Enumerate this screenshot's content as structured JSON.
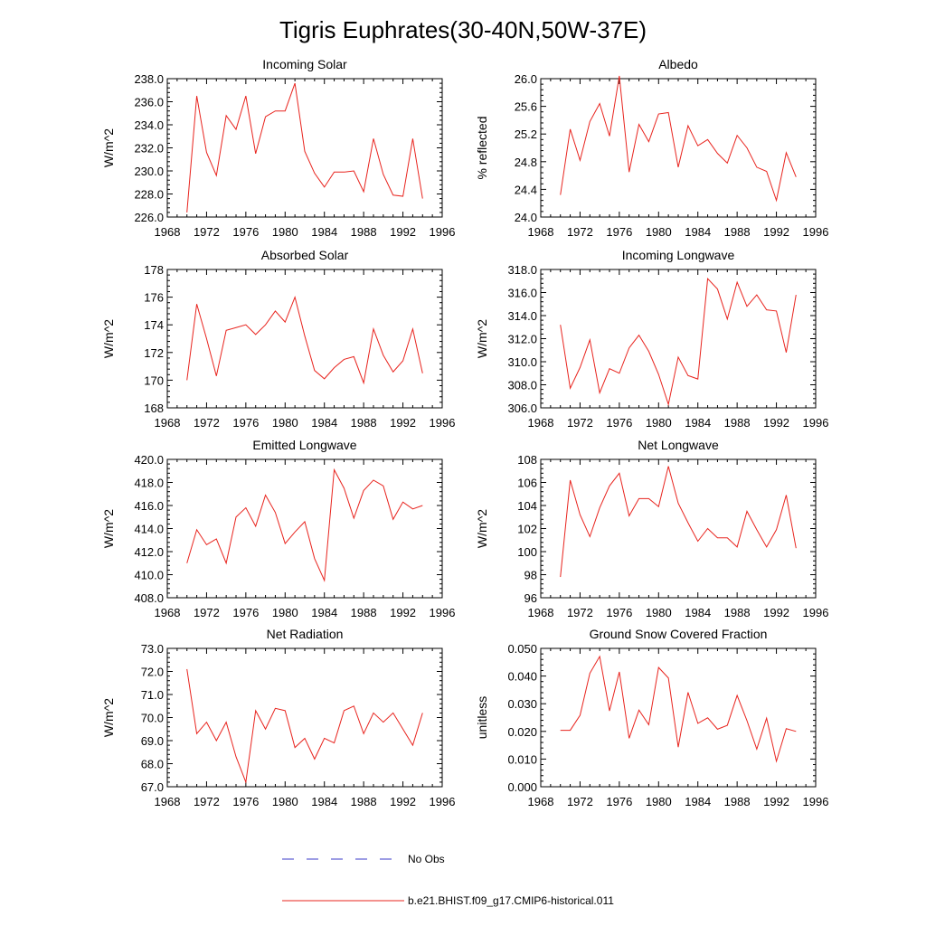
{
  "title": "Tigris Euphrates(30-40N,50W-37E)",
  "x_ticks": [
    "1968",
    "1972",
    "1976",
    "1980",
    "1984",
    "1988",
    "1992",
    "1996"
  ],
  "legend": {
    "obs_label": "No Obs",
    "model_label": "b.e21.BHIST.f09_g17.CMIP6-historical.011",
    "obs_color": "#3b3bc8",
    "model_color": "#e8241e"
  },
  "chart_data": [
    {
      "type": "line",
      "title": "Incoming Solar",
      "ylabel": "W/m^2",
      "xlim": [
        1968,
        1996
      ],
      "ylim": [
        226,
        238
      ],
      "y_ticks": [
        "226.0",
        "228.0",
        "230.0",
        "232.0",
        "234.0",
        "236.0",
        "238.0"
      ],
      "x": [
        1970,
        1971,
        1972,
        1973,
        1974,
        1975,
        1976,
        1977,
        1978,
        1979,
        1980,
        1981,
        1982,
        1983,
        1984,
        1985,
        1986,
        1987,
        1988,
        1989,
        1990,
        1991,
        1992,
        1993,
        1994
      ],
      "series": [
        {
          "values": [
            226.4,
            236.5,
            231.6,
            229.6,
            234.8,
            233.6,
            236.5,
            231.5,
            234.7,
            235.2,
            235.2,
            237.6,
            231.7,
            229.8,
            228.6,
            229.9,
            229.9,
            230.0,
            228.2,
            232.8,
            229.7,
            227.9,
            227.8,
            232.8,
            227.6
          ]
        }
      ]
    },
    {
      "type": "line",
      "title": "Albedo",
      "ylabel": "% reflected",
      "xlim": [
        1968,
        1996
      ],
      "ylim": [
        24.0,
        26.0
      ],
      "y_ticks": [
        "24.0",
        "24.4",
        "24.8",
        "25.2",
        "25.6",
        "26.0"
      ],
      "x": [
        1970,
        1971,
        1972,
        1973,
        1974,
        1975,
        1976,
        1977,
        1978,
        1979,
        1980,
        1981,
        1982,
        1983,
        1984,
        1985,
        1986,
        1987,
        1988,
        1989,
        1990,
        1991,
        1992,
        1993,
        1994
      ],
      "series": [
        {
          "values": [
            24.32,
            25.27,
            24.82,
            25.38,
            25.64,
            25.17,
            26.04,
            24.65,
            25.34,
            25.09,
            25.49,
            25.51,
            24.72,
            25.32,
            25.03,
            25.12,
            24.92,
            24.78,
            25.18,
            25.0,
            24.72,
            24.66,
            24.24,
            24.93,
            24.58
          ]
        }
      ]
    },
    {
      "type": "line",
      "title": "Absorbed Solar",
      "ylabel": "W/m^2",
      "xlim": [
        1968,
        1996
      ],
      "ylim": [
        168,
        178
      ],
      "y_ticks": [
        "168",
        "170",
        "172",
        "174",
        "176",
        "178"
      ],
      "x": [
        1970,
        1971,
        1972,
        1973,
        1974,
        1975,
        1976,
        1977,
        1978,
        1979,
        1980,
        1981,
        1982,
        1983,
        1984,
        1985,
        1986,
        1987,
        1988,
        1989,
        1990,
        1991,
        1992,
        1993,
        1994
      ],
      "series": [
        {
          "values": [
            170.0,
            175.5,
            173.0,
            170.3,
            173.6,
            173.8,
            174.0,
            173.3,
            174.0,
            175.0,
            174.2,
            176.0,
            173.2,
            170.7,
            170.1,
            170.9,
            171.5,
            171.7,
            169.8,
            173.7,
            171.8,
            170.6,
            171.4,
            173.7,
            170.5
          ]
        }
      ]
    },
    {
      "type": "line",
      "title": "Incoming Longwave",
      "ylabel": "W/m^2",
      "xlim": [
        1968,
        1996
      ],
      "ylim": [
        306,
        318
      ],
      "y_ticks": [
        "306.0",
        "308.0",
        "310.0",
        "312.0",
        "314.0",
        "316.0",
        "318.0"
      ],
      "x": [
        1970,
        1971,
        1972,
        1973,
        1974,
        1975,
        1976,
        1977,
        1978,
        1979,
        1980,
        1981,
        1982,
        1983,
        1984,
        1985,
        1986,
        1987,
        1988,
        1989,
        1990,
        1991,
        1992,
        1993,
        1994
      ],
      "series": [
        {
          "values": [
            313.2,
            307.7,
            309.5,
            311.9,
            307.3,
            309.4,
            309.0,
            311.2,
            312.3,
            310.9,
            308.9,
            306.3,
            310.4,
            308.8,
            308.5,
            317.2,
            316.3,
            313.7,
            316.9,
            314.8,
            315.8,
            314.5,
            314.4,
            310.8,
            315.8
          ]
        }
      ]
    },
    {
      "type": "line",
      "title": "Emitted Longwave",
      "ylabel": "W/m^2",
      "xlim": [
        1968,
        1996
      ],
      "ylim": [
        408,
        420
      ],
      "y_ticks": [
        "408.0",
        "410.0",
        "412.0",
        "414.0",
        "416.0",
        "418.0",
        "420.0"
      ],
      "x": [
        1970,
        1971,
        1972,
        1973,
        1974,
        1975,
        1976,
        1977,
        1978,
        1979,
        1980,
        1981,
        1982,
        1983,
        1984,
        1985,
        1986,
        1987,
        1988,
        1989,
        1990,
        1991,
        1992,
        1993,
        1994
      ],
      "series": [
        {
          "values": [
            411.0,
            413.9,
            412.6,
            413.1,
            411.0,
            415.0,
            415.8,
            414.2,
            416.9,
            415.4,
            412.7,
            413.7,
            414.6,
            411.4,
            409.5,
            419.1,
            417.5,
            414.9,
            417.3,
            418.2,
            417.7,
            414.8,
            416.3,
            415.7,
            416.0
          ]
        }
      ]
    },
    {
      "type": "line",
      "title": "Net Longwave",
      "ylabel": "W/m^2",
      "xlim": [
        1968,
        1996
      ],
      "ylim": [
        96,
        108
      ],
      "y_ticks": [
        "96",
        "98",
        "100",
        "102",
        "104",
        "106",
        "108"
      ],
      "x": [
        1970,
        1971,
        1972,
        1973,
        1974,
        1975,
        1976,
        1977,
        1978,
        1979,
        1980,
        1981,
        1982,
        1983,
        1984,
        1985,
        1986,
        1987,
        1988,
        1989,
        1990,
        1991,
        1992,
        1993,
        1994
      ],
      "series": [
        {
          "values": [
            97.8,
            106.2,
            103.2,
            101.3,
            103.8,
            105.7,
            106.8,
            103.1,
            104.6,
            104.6,
            103.9,
            107.4,
            104.2,
            102.5,
            100.9,
            102.0,
            101.2,
            101.2,
            100.4,
            103.5,
            101.9,
            100.4,
            101.9,
            104.9,
            100.3
          ]
        }
      ]
    },
    {
      "type": "line",
      "title": "Net Radiation",
      "ylabel": "W/m^2",
      "xlim": [
        1968,
        1996
      ],
      "ylim": [
        67,
        73
      ],
      "y_ticks": [
        "67.0",
        "68.0",
        "69.0",
        "70.0",
        "71.0",
        "72.0",
        "73.0"
      ],
      "x": [
        1970,
        1971,
        1972,
        1973,
        1974,
        1975,
        1976,
        1977,
        1978,
        1979,
        1980,
        1981,
        1982,
        1983,
        1984,
        1985,
        1986,
        1987,
        1988,
        1989,
        1990,
        1991,
        1992,
        1993,
        1994
      ],
      "series": [
        {
          "values": [
            72.1,
            69.3,
            69.8,
            69.0,
            69.8,
            68.3,
            67.2,
            70.3,
            69.5,
            70.4,
            70.3,
            68.7,
            69.1,
            68.2,
            69.1,
            68.9,
            70.3,
            70.5,
            69.3,
            70.2,
            69.8,
            70.2,
            69.5,
            68.8,
            70.2
          ]
        }
      ]
    },
    {
      "type": "line",
      "title": "Ground Snow Covered Fraction",
      "ylabel": "unitless",
      "xlim": [
        1968,
        1996
      ],
      "ylim": [
        0,
        0.05
      ],
      "y_ticks": [
        "0.000",
        "0.010",
        "0.020",
        "0.030",
        "0.040",
        "0.050"
      ],
      "x": [
        1970,
        1971,
        1972,
        1973,
        1974,
        1975,
        1976,
        1977,
        1978,
        1979,
        1980,
        1981,
        1982,
        1983,
        1984,
        1985,
        1986,
        1987,
        1988,
        1989,
        1990,
        1991,
        1992,
        1993,
        1994
      ],
      "series": [
        {
          "values": [
            0.0204,
            0.0204,
            0.0258,
            0.041,
            0.0471,
            0.0274,
            0.0415,
            0.0175,
            0.0277,
            0.0224,
            0.0431,
            0.0393,
            0.0143,
            0.0341,
            0.0229,
            0.0249,
            0.0208,
            0.0222,
            0.033,
            0.0239,
            0.0136,
            0.0248,
            0.0092,
            0.021,
            0.02
          ]
        }
      ]
    }
  ]
}
